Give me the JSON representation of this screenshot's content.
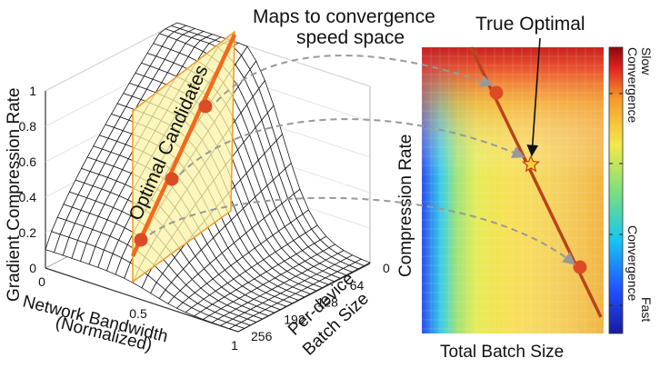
{
  "annotations": {
    "maps_line1": "Maps to convergence",
    "maps_line2": "speed space",
    "true_optimal": "True Optimal",
    "optimal_candidates": "Optimal Candidates"
  },
  "colors": {
    "surface_fill": "#ffffff",
    "surface_line": "#1a1a1a",
    "plane_fill": "#fbf3a6",
    "plane_edge": "#f0a030",
    "orange_line": "#f26a1b",
    "dot_fill": "#dd4b24",
    "diag_line": "#b8441c",
    "arrow_grey": "#999999",
    "star_fill": "#ffd03a"
  },
  "chart_data": [
    {
      "type": "surface3d",
      "title": "",
      "zlabel": "Gradient Compression Rate",
      "xlabel_line1": "Network Bandwidth",
      "xlabel_line2": "(Normalized)",
      "ylabel_line1": "Per-device",
      "ylabel_line2": "Batch Size",
      "z_ticks": [
        "0",
        "0.2",
        "0.4",
        "0.6",
        "0.8",
        "1"
      ],
      "x_ticks": [
        "0",
        "0.5",
        "1"
      ],
      "y_ticks": [
        "0",
        "64",
        "128",
        "192",
        "256"
      ],
      "zlim": [
        0,
        1
      ],
      "xlim": [
        0,
        1
      ],
      "ylim": [
        0,
        256
      ],
      "candidate_points": [
        {
          "bandwidth": 0.25,
          "batch": 96,
          "rate": 0.15
        },
        {
          "bandwidth": 0.25,
          "batch": 144,
          "rate": 0.5
        },
        {
          "bandwidth": 0.25,
          "batch": 200,
          "rate": 0.86
        }
      ]
    },
    {
      "type": "heatmap",
      "title": "",
      "xlabel": "Total Batch Size",
      "ylabel": "Compression Rate",
      "colorbar_top": [
        "Slow",
        "Convergence"
      ],
      "colorbar_bottom": [
        "Fast",
        "Convergence"
      ],
      "candidate_points": [
        {
          "batch": 0.42,
          "rate": 0.82
        },
        {
          "batch": 0.85,
          "rate": 0.2
        }
      ],
      "optimal_point": {
        "batch": 0.59,
        "rate": 0.62
      }
    }
  ]
}
